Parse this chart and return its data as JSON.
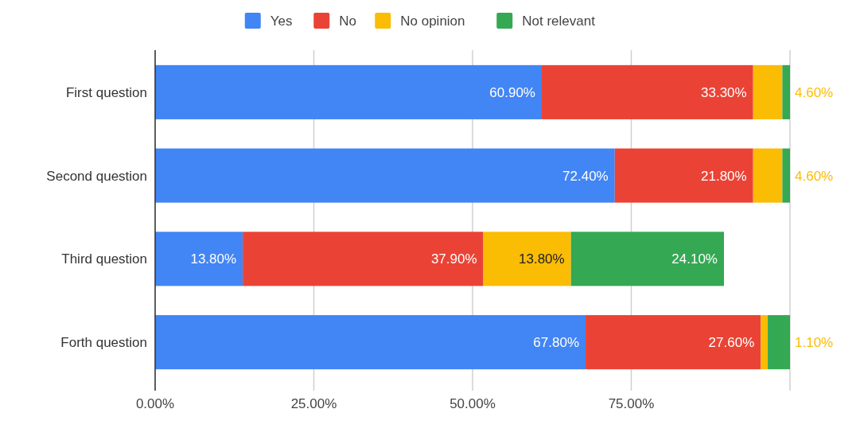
{
  "chart_data": {
    "type": "bar",
    "orientation": "horizontal",
    "stacked": true,
    "categories": [
      "First question",
      "Second question",
      "Third question",
      "Forth question"
    ],
    "series": [
      {
        "name": "Yes",
        "color": "#4285f4",
        "values": [
          60.9,
          72.4,
          13.8,
          67.8
        ],
        "value_labels": [
          "60.90%",
          "72.40%",
          "13.80%",
          "67.80%"
        ]
      },
      {
        "name": "No",
        "color": "#ea4335",
        "values": [
          33.3,
          21.8,
          37.9,
          27.6
        ],
        "value_labels": [
          "33.30%",
          "21.80%",
          "37.90%",
          "27.60%"
        ]
      },
      {
        "name": "No opinion",
        "color": "#fbbc04",
        "values": [
          4.6,
          4.6,
          13.8,
          1.1
        ],
        "value_labels": [
          "4.60%",
          "4.60%",
          "13.80%",
          "1.10%"
        ]
      },
      {
        "name": "Not relevant",
        "color": "#34a853",
        "values": [
          1.2,
          1.2,
          24.1,
          3.5
        ],
        "value_labels": [
          null,
          null,
          "24.10%",
          null
        ]
      }
    ],
    "xlim": [
      0,
      100
    ],
    "xticks": [
      {
        "value": 0,
        "label": "0.00%"
      },
      {
        "value": 25,
        "label": "25.00%"
      },
      {
        "value": 50,
        "label": "50.00%"
      },
      {
        "value": 75,
        "label": "75.00%"
      },
      {
        "value": 100,
        "label": null
      }
    ],
    "grid": "x",
    "legend": "top"
  }
}
